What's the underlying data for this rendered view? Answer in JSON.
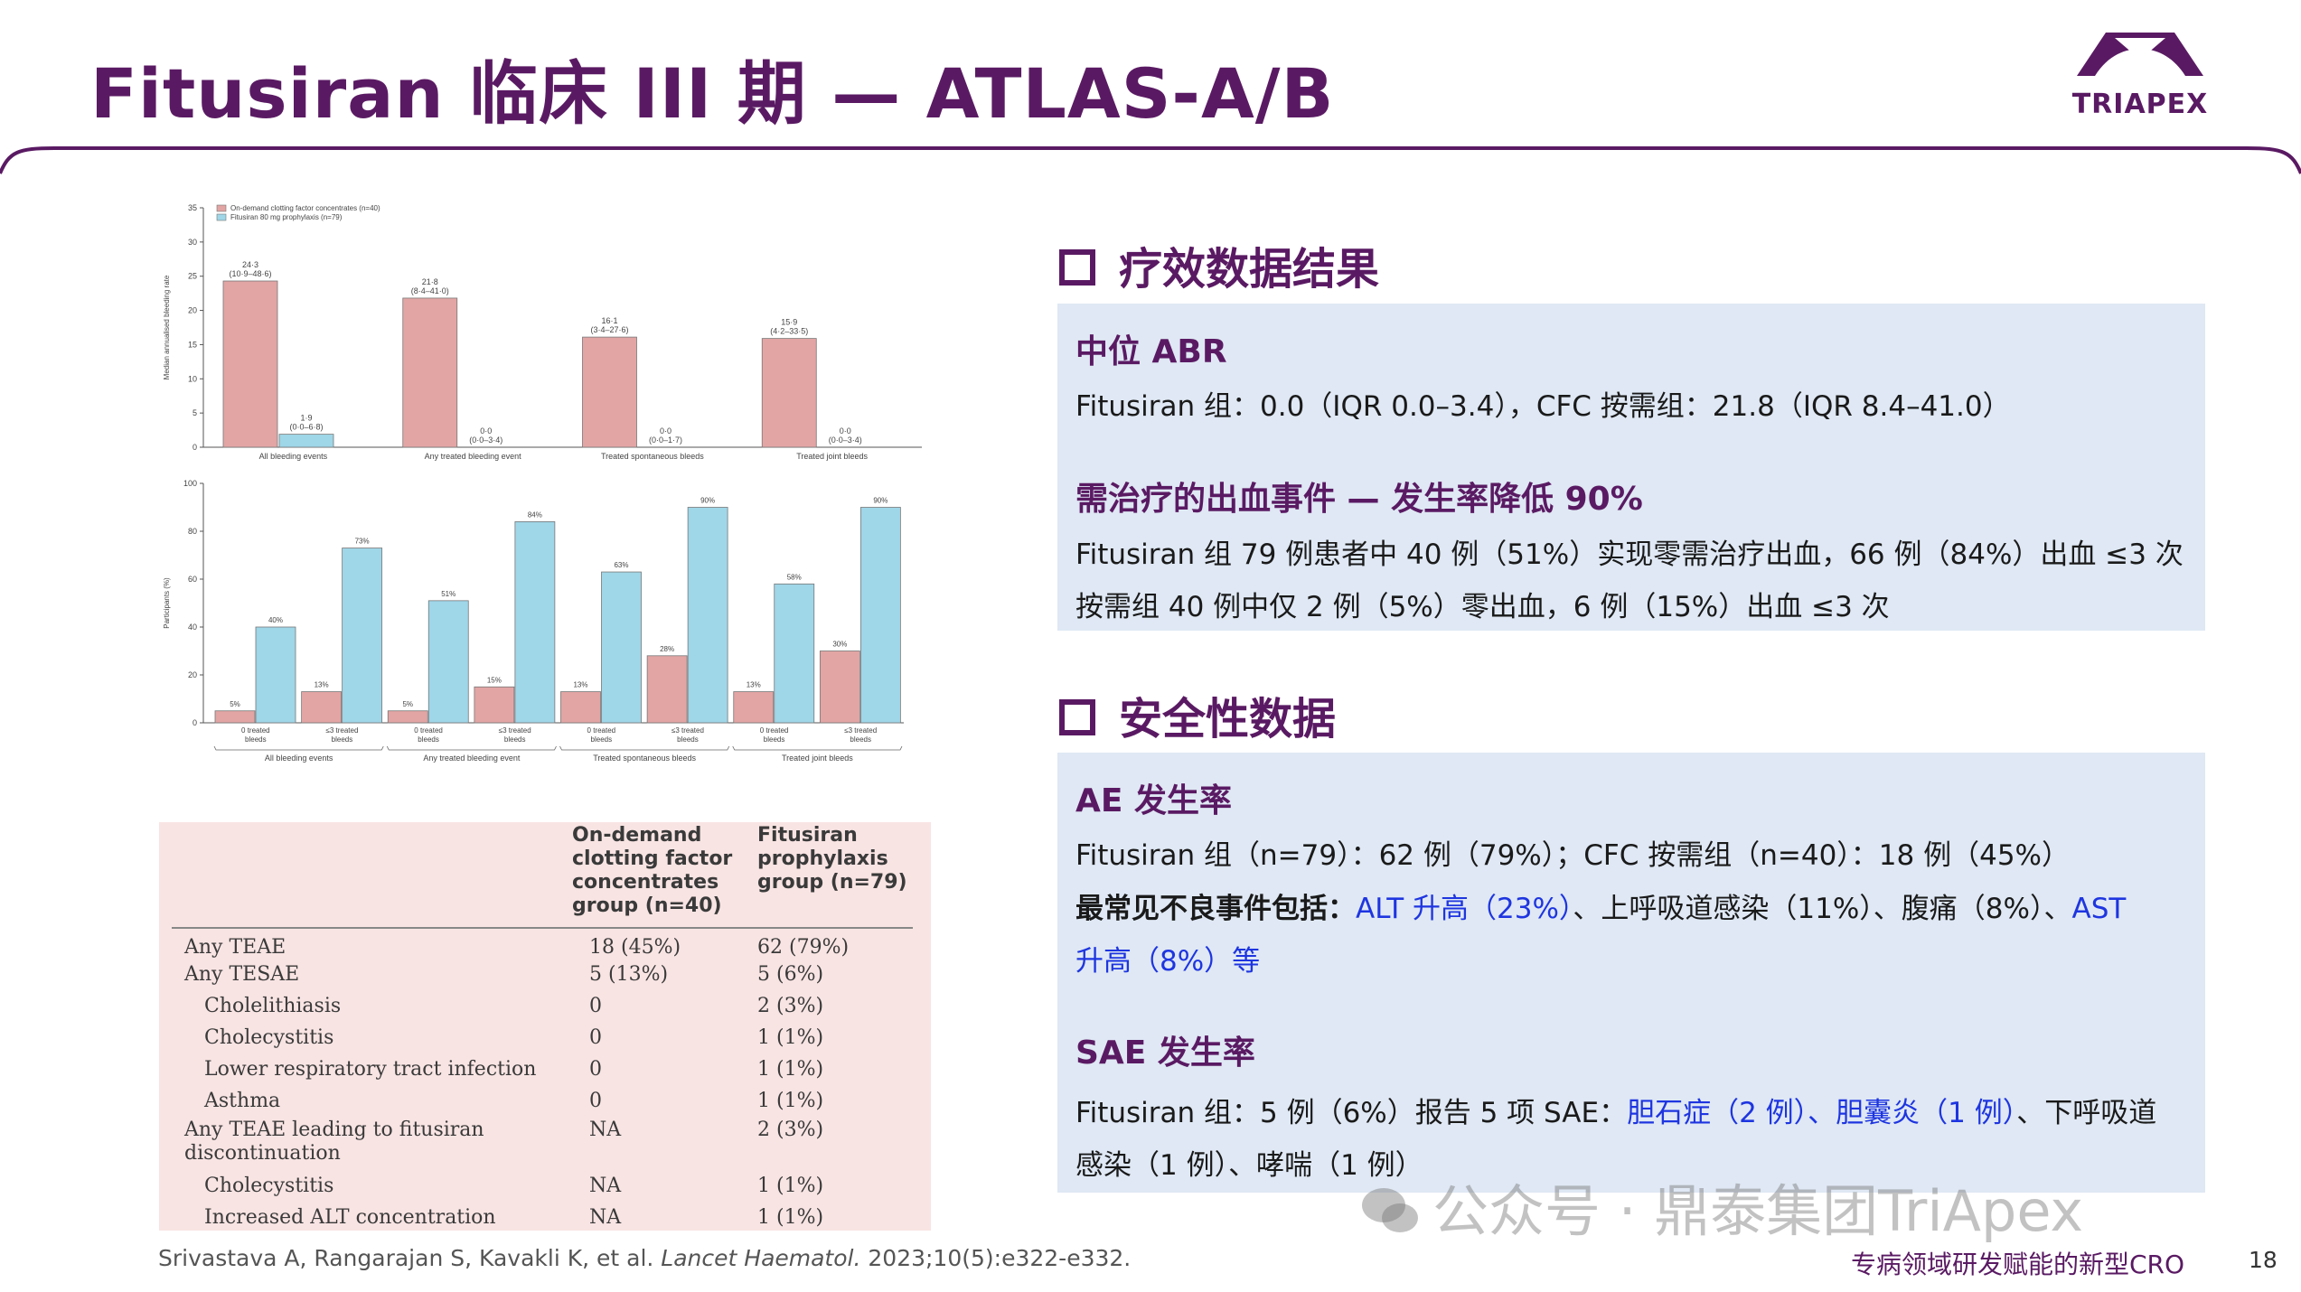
{
  "slide": {
    "title": "Fitusiran 临床 III 期 — ATLAS-A/B",
    "logo_text": "TRIAPEX",
    "reference_plain": "Srivastava A, Rangarajan S, Kavakli K, et al. ",
    "reference_journal": "Lancet Haematol.",
    "reference_tail": " 2023;10(5):e322-e332.",
    "footer_tagline": "专病领域研发赋能的新型CRO",
    "page_number": "18",
    "watermark": "公众号 · 鼎泰集团TriApex",
    "colors": {
      "brand": "#5a1a63",
      "panel": "#dfe8f4",
      "link": "#1e35e0",
      "bar_cfc": "#e2a5a4",
      "bar_fitusiran": "#9fd6e8"
    }
  },
  "efficacy": {
    "heading": "疗效数据结果",
    "abr_title": "中位 ABR",
    "abr_text": "Fitusiran 组：0.0（IQR 0.0–3.4），CFC 按需组：21.8（IQR 8.4–41.0）",
    "bleed_title": "需治疗的出血事件 — 发生率降低 90%",
    "bleed_line1": "Fitusiran 组 79 例患者中 40 例（51%）实现零需治疗出血，66 例（84%）出血 ≤3 次",
    "bleed_line2": "按需组 40 例中仅 2 例（5%）零出血，6 例（15%）出血 ≤3 次"
  },
  "safety": {
    "heading": "安全性数据",
    "ae_title": "AE 发生率",
    "ae_text": "Fitusiran 组（n=79）：62 例（79%）；CFC 按需组（n=40）：18 例（45%）",
    "ae_common_label": "最常见不良事件包括：",
    "ae_common_alt": "ALT 升高（23%）",
    "ae_common_mid": "、上呼吸道感染（11%）、腹痛（8%）、",
    "ae_common_ast1": "AST",
    "ae_common_ast2": "升高（8%）等",
    "sae_title": "SAE 发生率",
    "sae_prefix": "Fitusiran 组：5 例（6%）报告 5 项 SAE：",
    "sae_blue": "胆石症（2 例）、胆囊炎（1 例）",
    "sae_suffix": "、下呼吸道",
    "sae_line2": "感染（1 例）、哮喘（1 例）"
  },
  "chart_data": [
    {
      "type": "bar",
      "title": "",
      "legend": [
        "On-demand clotting factor concentrates (n=40)",
        "Fitusiran 80 mg prophylaxis (n=79)"
      ],
      "ylabel": "Median annualised bleeding rate",
      "ylim": [
        0,
        35
      ],
      "yticks": [
        "0",
        "5",
        "10",
        "15",
        "20",
        "25",
        "30",
        "35"
      ],
      "categories": [
        "All bleeding events",
        "Any treated bleeding event",
        "Treated spontaneous bleeds",
        "Treated joint bleeds"
      ],
      "series": [
        {
          "name": "On-demand clotting factor concentrates (n=40)",
          "values": [
            24.3,
            21.8,
            16.1,
            15.9
          ],
          "labels": [
            "24·3",
            "21·8",
            "16·1",
            "15·9"
          ],
          "ci": [
            "(10·9–48·6)",
            "(8·4–41·0)",
            "(3·4–27·6)",
            "(4·2–33·5)"
          ]
        },
        {
          "name": "Fitusiran 80 mg prophylaxis (n=79)",
          "values": [
            1.9,
            0.0,
            0.0,
            0.0
          ],
          "labels": [
            "1·9",
            "0·0",
            "0·0",
            "0·0"
          ],
          "ci": [
            "(0·0–6·8)",
            "(0·0–3·4)",
            "(0·0–1·7)",
            "(0·0–3·4)"
          ]
        }
      ]
    },
    {
      "type": "bar",
      "ylabel": "Participants (%)",
      "ylim": [
        0,
        100
      ],
      "yticks": [
        "0",
        "20",
        "40",
        "60",
        "80",
        "100"
      ],
      "groups": [
        "All bleeding events",
        "Any treated bleeding event",
        "Treated spontaneous bleeds",
        "Treated joint bleeds"
      ],
      "subcategories": [
        [
          "0 treated",
          "bleeds"
        ],
        [
          "≤3 treated",
          "bleeds"
        ]
      ],
      "series": [
        {
          "name": "On-demand clotting factor concentrates (n=40)",
          "values": [
            5,
            13,
            5,
            15,
            13,
            28,
            13,
            30
          ],
          "labels": [
            "5%",
            "13%",
            "5%",
            "15%",
            "13%",
            "28%",
            "13%",
            "30%"
          ]
        },
        {
          "name": "Fitusiran 80 mg prophylaxis (n=79)",
          "values": [
            40,
            73,
            51,
            84,
            63,
            90,
            58,
            90
          ],
          "labels": [
            "40%",
            "73%",
            "51%",
            "84%",
            "63%",
            "90%",
            "58%",
            "90%"
          ]
        }
      ]
    },
    {
      "type": "table",
      "header": [
        "",
        "On-demand clotting factor concentrates group (n=40)",
        "Fitusiran prophylaxis group (n=79)"
      ],
      "header_lines_a": [
        "On-demand",
        "clotting factor",
        "concentrates",
        "group (n=40)"
      ],
      "header_lines_b": [
        "Fitusiran",
        "prophylaxis",
        "group (n=79)"
      ],
      "rows": [
        {
          "label": "Any TEAE",
          "a": "18 (45%)",
          "b": "62 (79%)"
        },
        {
          "label": "Any TESAE",
          "a": "5 (13%)",
          "b": "5 (6%)"
        },
        {
          "label": "Cholelithiasis",
          "a": "0",
          "b": "2 (3%)"
        },
        {
          "label": "Cholecystitis",
          "a": "0",
          "b": "1 (1%)"
        },
        {
          "label": "Lower respiratory tract infection",
          "a": "0",
          "b": "1 (1%)"
        },
        {
          "label": "Asthma",
          "a": "0",
          "b": "1 (1%)"
        },
        {
          "label": "Any TEAE leading to fitusiran",
          "label2": "discontinuation",
          "a": "NA",
          "b": "2 (3%)"
        },
        {
          "label": "Cholecystitis",
          "a": "NA",
          "b": "1 (1%)"
        },
        {
          "label": "Increased ALT concentration",
          "a": "NA",
          "b": "1 (1%)"
        }
      ]
    }
  ]
}
